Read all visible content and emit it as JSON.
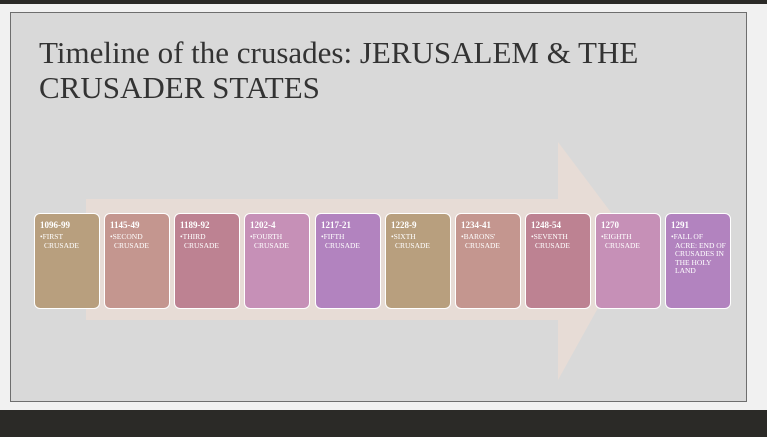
{
  "slide": {
    "title": "Timeline of the crusades: JERUSALEM & THE CRUSADER STATES"
  },
  "timeline": [
    {
      "year": "1096-99",
      "event": "•FIRST CRUSADE",
      "color": "#b89f7e"
    },
    {
      "year": "1145-49",
      "event": "•SECOND CRUSADE",
      "color": "#c4968f"
    },
    {
      "year": "1189-92",
      "event": "•THIRD CRUSADE",
      "color": "#bd8292"
    },
    {
      "year": "1202-4",
      "event": "•FOURTH CRUSADE",
      "color": "#c690b7"
    },
    {
      "year": "1217-21",
      "event": "•FIFTH CRUSADE",
      "color": "#b283bf"
    },
    {
      "year": "1228-9",
      "event": "•SIXTH CRUSADE",
      "color": "#b89f7e"
    },
    {
      "year": "1234-41",
      "event": "•BARONS' CRUSADE",
      "color": "#c4968f"
    },
    {
      "year": "1248-54",
      "event": "•SEVENTH CRUSADE",
      "color": "#bd8292"
    },
    {
      "year": "1270",
      "event": "•EIGHTH CRUSADE",
      "color": "#c690b7"
    },
    {
      "year": "1291",
      "event": "•FALL OF ACRE: END OF CRUSADES IN THE HOLY LAND",
      "color": "#b283bf"
    }
  ]
}
